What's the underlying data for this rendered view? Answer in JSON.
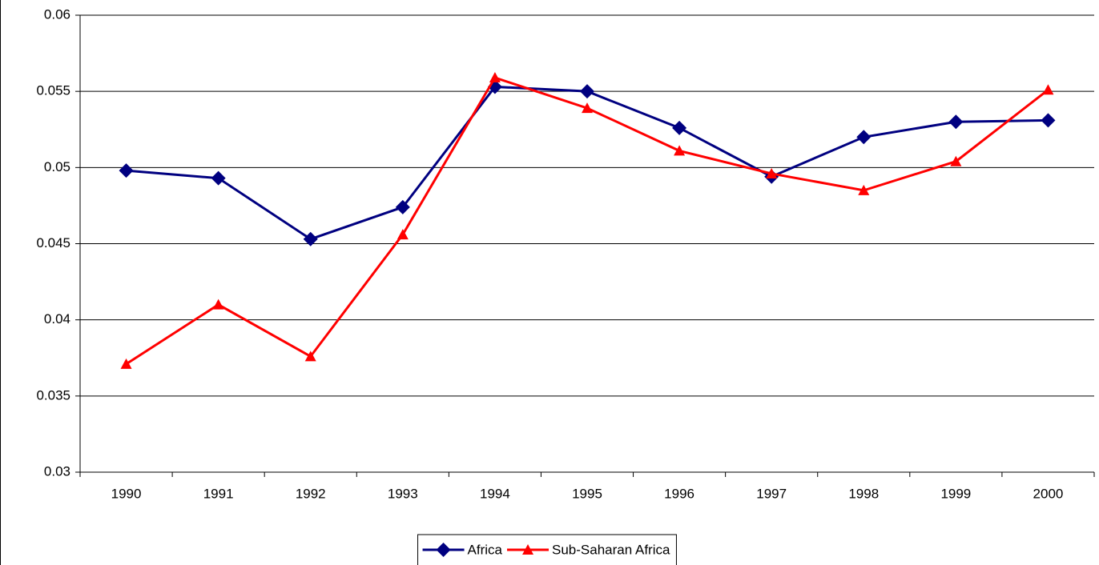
{
  "chart_data": {
    "type": "line",
    "categories": [
      "1990",
      "1991",
      "1992",
      "1993",
      "1994",
      "1995",
      "1996",
      "1997",
      "1998",
      "1999",
      "2000"
    ],
    "series": [
      {
        "name": "Africa",
        "color": "#000080",
        "marker": "diamond",
        "values": [
          0.0498,
          0.0493,
          0.0453,
          0.0474,
          0.0553,
          0.055,
          0.0526,
          0.0494,
          0.052,
          0.053,
          0.0531
        ]
      },
      {
        "name": "Sub-Saharan Africa",
        "color": "#ff0000",
        "marker": "triangle",
        "values": [
          0.0371,
          0.041,
          0.0376,
          0.0456,
          0.0559,
          0.0539,
          0.0511,
          0.0496,
          0.0485,
          0.0504,
          0.0551
        ]
      }
    ],
    "ylim": [
      0.03,
      0.06
    ],
    "yticks": [
      0.03,
      0.035,
      0.04,
      0.045,
      0.05,
      0.055,
      0.06
    ],
    "grid": true,
    "legend": "bottom"
  }
}
